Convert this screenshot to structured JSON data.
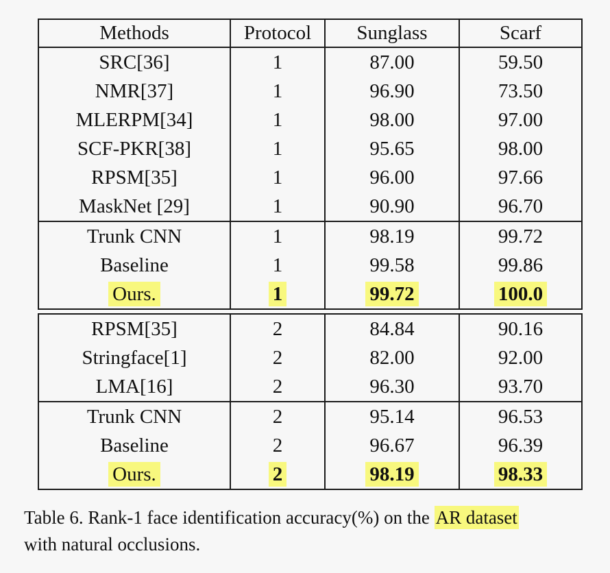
{
  "colors": {
    "background": "#f7f7f7",
    "highlight": "#f8f87e",
    "border": "#1a1a1a",
    "text": "#101010"
  },
  "table": {
    "headers": [
      "Methods",
      "Protocol",
      "Sunglass",
      "Scarf"
    ],
    "blocks": [
      {
        "sections": [
          {
            "rows": [
              {
                "method": "SRC[36]",
                "protocol": "1",
                "sunglass": "87.00",
                "scarf": "59.50",
                "emphasis": false
              },
              {
                "method": "NMR[37]",
                "protocol": "1",
                "sunglass": "96.90",
                "scarf": "73.50",
                "emphasis": false
              },
              {
                "method": "MLERPM[34]",
                "protocol": "1",
                "sunglass": "98.00",
                "scarf": "97.00",
                "emphasis": false
              },
              {
                "method": "SCF-PKR[38]",
                "protocol": "1",
                "sunglass": "95.65",
                "scarf": "98.00",
                "emphasis": false
              },
              {
                "method": "RPSM[35]",
                "protocol": "1",
                "sunglass": "96.00",
                "scarf": "97.66",
                "emphasis": false
              },
              {
                "method": "MaskNet [29]",
                "protocol": "1",
                "sunglass": "90.90",
                "scarf": "96.70",
                "emphasis": false
              }
            ]
          },
          {
            "rows": [
              {
                "method": "Trunk CNN",
                "protocol": "1",
                "sunglass": "98.19",
                "scarf": "99.72",
                "emphasis": false
              },
              {
                "method": "Baseline",
                "protocol": "1",
                "sunglass": "99.58",
                "scarf": "99.86",
                "emphasis": false
              },
              {
                "method": "Ours.",
                "protocol": "1",
                "sunglass": "99.72",
                "scarf": "100.0",
                "emphasis": true
              }
            ]
          }
        ]
      },
      {
        "sections": [
          {
            "rows": [
              {
                "method": "RPSM[35]",
                "protocol": "2",
                "sunglass": "84.84",
                "scarf": "90.16",
                "emphasis": false
              },
              {
                "method": "Stringface[1]",
                "protocol": "2",
                "sunglass": "82.00",
                "scarf": "92.00",
                "emphasis": false
              },
              {
                "method": "LMA[16]",
                "protocol": "2",
                "sunglass": "96.30",
                "scarf": "93.70",
                "emphasis": false
              }
            ]
          },
          {
            "rows": [
              {
                "method": "Trunk CNN",
                "protocol": "2",
                "sunglass": "95.14",
                "scarf": "96.53",
                "emphasis": false
              },
              {
                "method": "Baseline",
                "protocol": "2",
                "sunglass": "96.67",
                "scarf": "96.39",
                "emphasis": false
              },
              {
                "method": "Ours.",
                "protocol": "2",
                "sunglass": "98.19",
                "scarf": "98.33",
                "emphasis": true
              }
            ]
          }
        ]
      }
    ]
  },
  "caption": {
    "prefix": "Table 6. Rank-1 face identification accuracy(%) on the ",
    "highlighted": "AR dataset",
    "suffix": "with natural occlusions."
  }
}
